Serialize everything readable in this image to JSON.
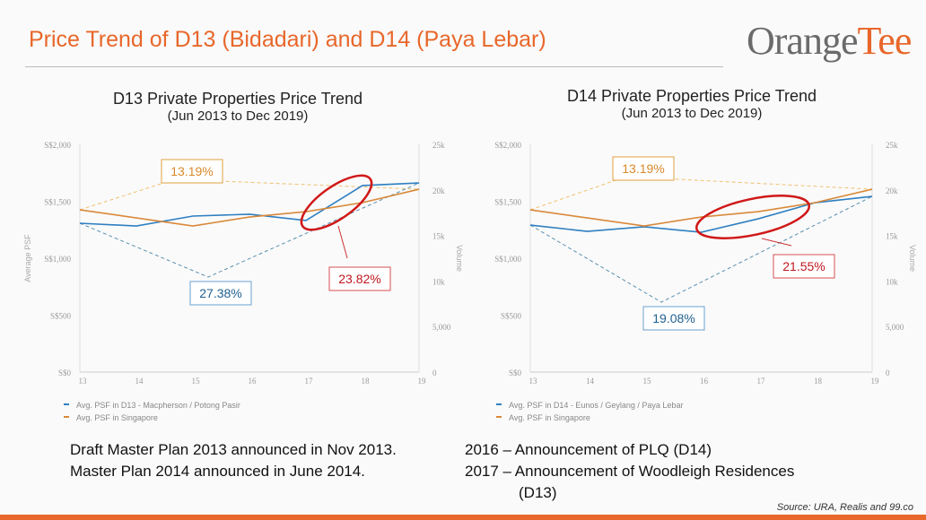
{
  "header": {
    "title": "Price Trend of D13 (Bidadari) and D14 (Paya Lebar)",
    "logo": "OrangeTee"
  },
  "chart_data": [
    {
      "type": "line",
      "title": "D13 Private Properties Price Trend",
      "subtitle": "(Jun 2013 to Dec 2019)",
      "x": [
        "13",
        "14",
        "15",
        "16",
        "17",
        "18",
        "19"
      ],
      "ylabel": "Average PSF",
      "y2label": "Volume",
      "ylim": [
        0,
        2000
      ],
      "y2lim": [
        0,
        25000
      ],
      "yticks": [
        "S$0",
        "S$500",
        "S$1,000",
        "S$1,500",
        "S$2,000"
      ],
      "y2ticks": [
        "0",
        "5,000",
        "10k",
        "15k",
        "20k",
        "25k"
      ],
      "series": [
        {
          "name": "Avg. PSF in D13 - Macpherson / Potong Pasir",
          "color": "#2f7fc1",
          "values": [
            1307,
            1283,
            1370,
            1386,
            1331,
            1638,
            1661
          ]
        },
        {
          "name": "Avg. PSF in Singapore",
          "color": "#d9893a",
          "values": [
            1425,
            1354,
            1283,
            1362,
            1409,
            1488,
            1606
          ]
        }
      ],
      "annotations": {
        "sg": "13.19%",
        "district": "27.38%",
        "highlight": "23.82%"
      },
      "highlight_range": [
        17,
        18
      ]
    },
    {
      "type": "line",
      "title": "D14 Private Properties Price Trend",
      "subtitle": "(Jun 2013 to Dec 2019)",
      "x": [
        "13",
        "14",
        "15",
        "16",
        "17",
        "18",
        "19"
      ],
      "ylabel": "",
      "y2label": "Volume",
      "ylim": [
        0,
        2000
      ],
      "y2lim": [
        0,
        25000
      ],
      "yticks": [
        "S$0",
        "S$500",
        "S$1,000",
        "S$1,500",
        "S$2,000"
      ],
      "y2ticks": [
        "0",
        "5,000",
        "10k",
        "15k",
        "20k",
        "25k"
      ],
      "series": [
        {
          "name": "Avg. PSF in D14 - Eunos / Geylang / Paya Lebar",
          "color": "#2f7fc1",
          "values": [
            1291,
            1236,
            1276,
            1228,
            1346,
            1488,
            1543
          ]
        },
        {
          "name": "Avg. PSF in Singapore",
          "color": "#d9893a",
          "values": [
            1425,
            1354,
            1283,
            1362,
            1409,
            1488,
            1606
          ]
        }
      ],
      "annotations": {
        "sg": "13.19%",
        "district": "19.08%",
        "highlight": "21.55%"
      },
      "highlight_range": [
        16,
        18
      ]
    }
  ],
  "notes": {
    "left1": "Draft Master Plan 2013 announced in Nov 2013.",
    "left2": "Master Plan 2014 announced in June 2014.",
    "right1": "2016 – Announcement of PLQ (D14)",
    "right2": "2017 – Announcement of Woodleigh Residences",
    "right3": "(D13)"
  },
  "source": "Source: URA, Realis and 99.co"
}
